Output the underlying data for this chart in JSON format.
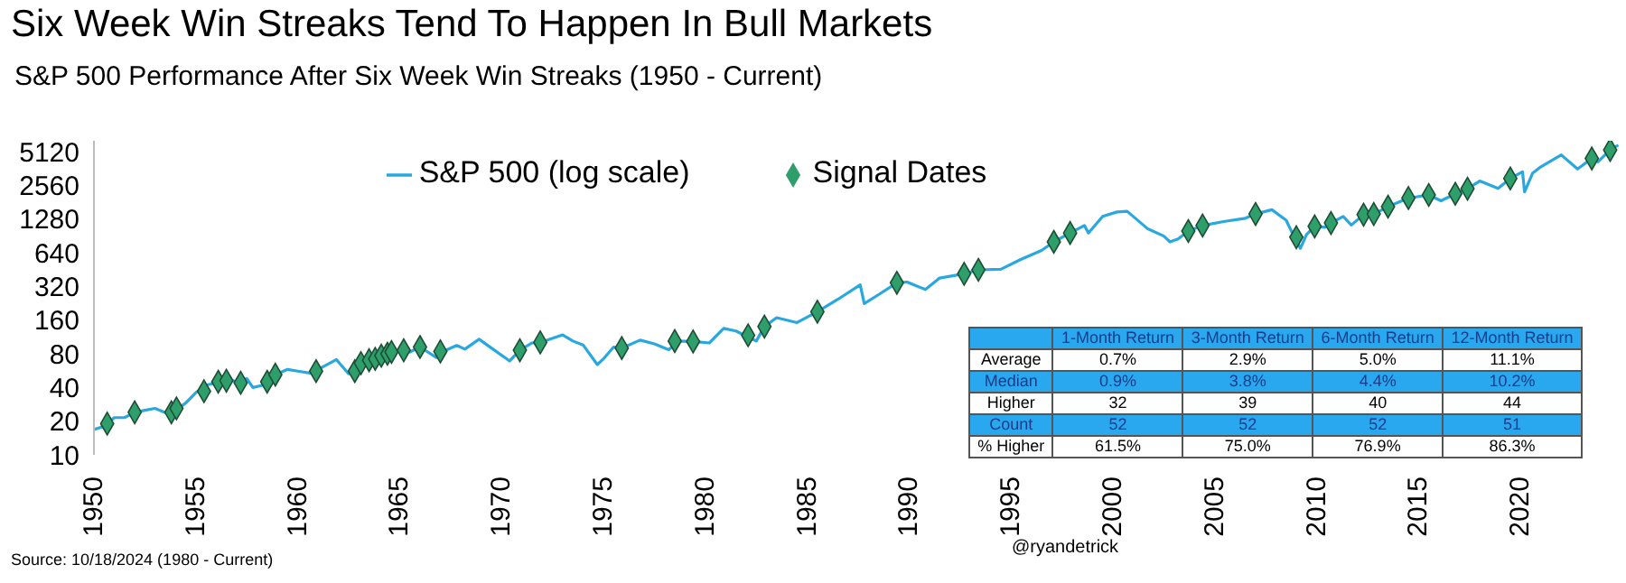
{
  "chart_data": [
    {
      "type": "line",
      "title": "Six Week Win Streaks Tend To Happen In Bull Markets",
      "subtitle": "S&P 500 Performance After Six Week Win Streaks (1950 - Current)",
      "log": "y",
      "xlim": [
        1950,
        2025
      ],
      "xticks": [
        1950,
        1955,
        1960,
        1965,
        1970,
        1975,
        1980,
        1985,
        1990,
        1995,
        2000,
        2005,
        2010,
        2015,
        2020
      ],
      "ylim": [
        10,
        6400
      ],
      "yticks": [
        10,
        20,
        40,
        80,
        160,
        320,
        640,
        1280,
        2560,
        5120
      ],
      "grid": false,
      "legend": "top",
      "annotations": [
        "Source: 10/18/2024 (1980 - Current)",
        "@ryandetrick"
      ],
      "series": [
        {
          "name": "S&P 500 (log scale)",
          "type": "line",
          "color": "#29a8e0",
          "marker": "none",
          "x": [
            1950.0,
            1950.5,
            1951.0,
            1951.5,
            1952.0,
            1952.5,
            1953.0,
            1953.7,
            1954.0,
            1954.5,
            1955.0,
            1955.5,
            1956.0,
            1956.5,
            1957.0,
            1957.5,
            1957.8,
            1958.3,
            1958.9,
            1959.5,
            1960.0,
            1960.8,
            1961.0,
            1961.9,
            1962.5,
            1962.8,
            1963.5,
            1964.0,
            1964.6,
            1965.2,
            1965.5,
            1966.0,
            1966.8,
            1967.0,
            1967.8,
            1968.2,
            1968.9,
            1969.5,
            1970.4,
            1970.9,
            1971.5,
            1971.9,
            1973.0,
            1973.5,
            1974.0,
            1974.7,
            1975.0,
            1975.5,
            1975.9,
            1976.8,
            1977.5,
            1978.2,
            1978.7,
            1979.4,
            1980.2,
            1980.9,
            1981.5,
            1982.5,
            1982.9,
            1983.5,
            1984.5,
            1985.0,
            1985.5,
            1986.5,
            1987.6,
            1987.8,
            1988.5,
            1989.4,
            1989.9,
            1990.8,
            1991.5,
            1992.7,
            1993.4,
            1994.5,
            1995.5,
            1996.5,
            1997.1,
            1997.9,
            1998.6,
            1998.8,
            1999.5,
            2000.2,
            2000.7,
            2001.7,
            2002.5,
            2002.8,
            2003.2,
            2003.7,
            2004.4,
            2005.5,
            2006.5,
            2007.0,
            2007.8,
            2008.5,
            2008.9,
            2009.2,
            2009.5,
            2009.9,
            2010.4,
            2010.7,
            2011.3,
            2011.7,
            2012.3,
            2012.8,
            2013.5,
            2014.5,
            2015.5,
            2016.1,
            2016.8,
            2017.4,
            2018.0,
            2018.9,
            2019.5,
            2020.1,
            2020.2,
            2020.6,
            2021.0,
            2022.0,
            2022.8,
            2023.5,
            2023.8,
            2024.4,
            2024.8
          ],
          "values": [
            16.8,
            18,
            21.5,
            21.5,
            24,
            25,
            26,
            23,
            25,
            29,
            36,
            42,
            44,
            48,
            45,
            48,
            40,
            42,
            52,
            58,
            56,
            53,
            58,
            71,
            53,
            56,
            70,
            76,
            83,
            86,
            83,
            92,
            74,
            82,
            95,
            88,
            108,
            90,
            69,
            86,
            100,
            101,
            118,
            104,
            96,
            64,
            72,
            92,
            90,
            106,
            98,
            87,
            104,
            103,
            100,
            135,
            128,
            104,
            140,
            168,
            152,
            170,
            190,
            245,
            330,
            225,
            270,
            345,
            350,
            300,
            380,
            415,
            450,
            455,
            560,
            670,
            800,
            960,
            1120,
            960,
            1350,
            1480,
            1500,
            1050,
            900,
            800,
            850,
            1000,
            1120,
            1220,
            1300,
            1420,
            1550,
            1250,
            880,
            700,
            930,
            1100,
            1080,
            1180,
            1350,
            1130,
            1400,
            1420,
            1650,
            1970,
            2100,
            1860,
            2150,
            2390,
            2800,
            2400,
            2950,
            3380,
            2240,
            3300,
            3750,
            4790,
            3580,
            4450,
            4150,
            5300,
            5860
          ]
        },
        {
          "name": "Signal Dates",
          "type": "scatter",
          "color": "#2e9e6b",
          "marker": "diamond",
          "x": [
            1950.65,
            1952.0,
            1953.8,
            1954.05,
            1955.4,
            1956.1,
            1956.5,
            1957.2,
            1958.5,
            1958.9,
            1960.9,
            1962.8,
            1963.1,
            1963.5,
            1963.8,
            1964.1,
            1964.4,
            1964.6,
            1965.2,
            1966.0,
            1967.0,
            1970.9,
            1971.9,
            1975.9,
            1978.5,
            1979.4,
            1982.1,
            1982.9,
            1985.5,
            1989.4,
            1992.7,
            1993.4,
            1997.1,
            1997.9,
            2003.7,
            2004.4,
            2007.0,
            2009.0,
            2009.9,
            2010.7,
            2012.3,
            2012.8,
            2013.5,
            2014.5,
            2015.5,
            2016.8,
            2017.4,
            2019.5,
            2023.5,
            2024.4
          ],
          "values": [
            19,
            24,
            24,
            26,
            37,
            45,
            46,
            44,
            45,
            52,
            56,
            56,
            66,
            70,
            72,
            77,
            80,
            83,
            86,
            92,
            84,
            86,
            101,
            90,
            104,
            103,
            117,
            140,
            190,
            345,
            415,
            450,
            800,
            960,
            1000,
            1120,
            1420,
            880,
            1100,
            1180,
            1400,
            1420,
            1650,
            1970,
            2100,
            2150,
            2390,
            2950,
            4450,
            5300
          ]
        }
      ]
    },
    {
      "type": "other",
      "color": "#29a8f0",
      "categories": [
        "1-Month Return",
        "3-Month Return",
        "6-Month Return",
        "12-Month Return"
      ],
      "y_categories": [
        "Average",
        "Median",
        "Higher",
        "Count",
        "% Higher"
      ],
      "cell_labels": [
        [
          "0.7%",
          "2.9%",
          "5.0%",
          "11.1%"
        ],
        [
          "0.9%",
          "3.8%",
          "4.4%",
          "10.2%"
        ],
        [
          "32",
          "39",
          "40",
          "44"
        ],
        [
          "52",
          "52",
          "52",
          "51"
        ],
        [
          "61.5%",
          "75.0%",
          "76.9%",
          "86.3%"
        ]
      ]
    }
  ]
}
